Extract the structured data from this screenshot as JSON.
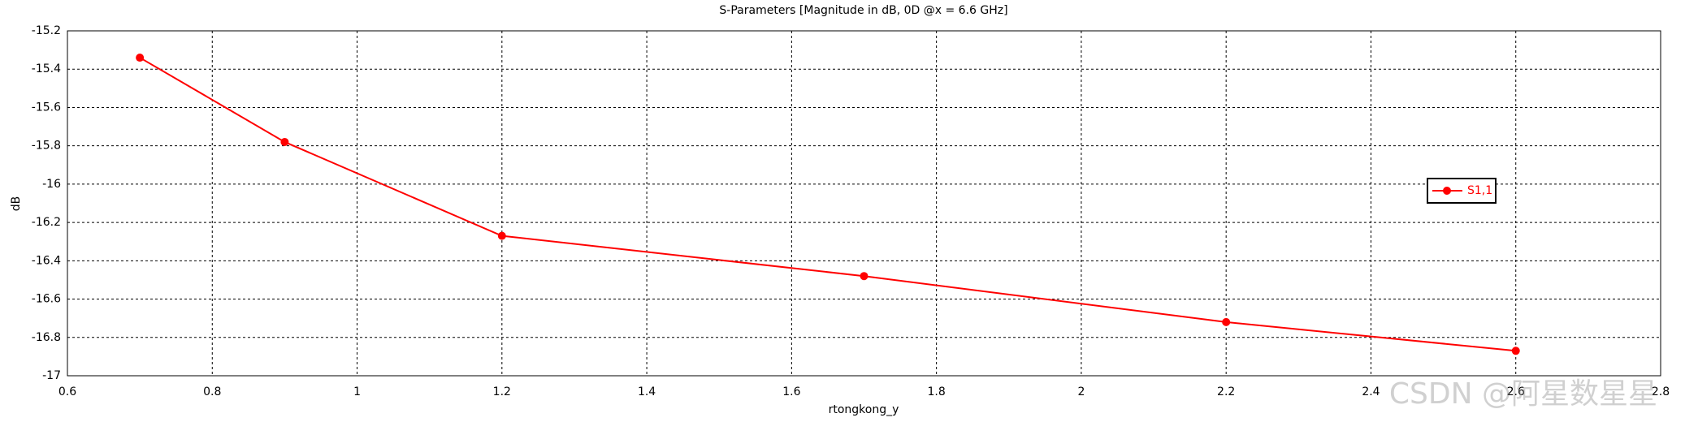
{
  "chart_data": {
    "type": "line",
    "title": "S-Parameters [Magnitude in dB, 0D @x = 6.6 GHz]",
    "x_label": "rtongkong_y",
    "y_label": "dB",
    "x": [
      0.7,
      0.9,
      1.2,
      1.7,
      2.2,
      2.6
    ],
    "series": [
      {
        "name": "S1,1",
        "color": "#ff0000",
        "values": [
          -15.34,
          -15.78,
          -16.27,
          -16.48,
          -16.72,
          -16.87
        ]
      }
    ],
    "xlim": [
      0.6,
      2.8
    ],
    "xticks": [
      0.6,
      0.8,
      1,
      1.2,
      1.4,
      1.6,
      1.8,
      2,
      2.2,
      2.4,
      2.6,
      2.8
    ],
    "ylim": [
      -17,
      -15.2
    ],
    "yticks": [
      -15.2,
      -15.4,
      -15.6,
      -15.8,
      -16,
      -16.2,
      -16.4,
      -16.6,
      -16.8,
      -17
    ],
    "grid": true,
    "legend": "right",
    "watermark": "CSDN @阿星数星星"
  }
}
